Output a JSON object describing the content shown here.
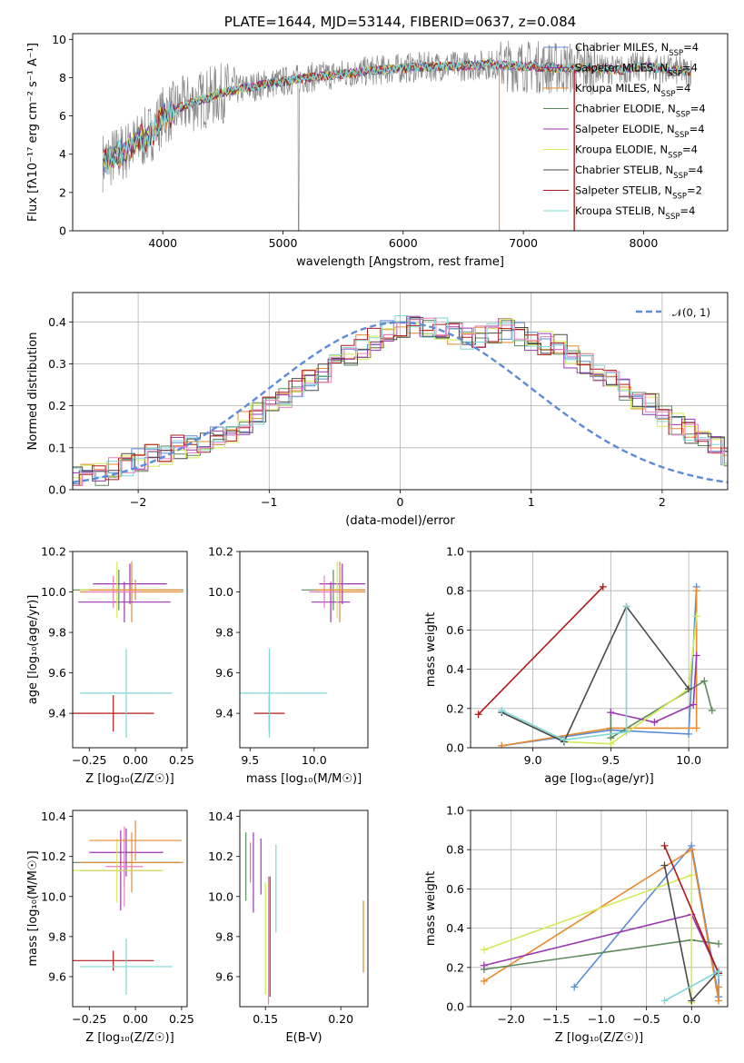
{
  "colors": [
    "#5b8bd9",
    "#e88a2e",
    "#5c8a5c",
    "#9b36b0",
    "#d4e855",
    "#4a4a4a",
    "#b01818",
    "#7fd6d6",
    "#e87fc0",
    "#888888"
  ],
  "chart_data": [
    {
      "type": "line",
      "title": "PLATE=1644, MJD=53144, FIBERID=0637, z=0.084",
      "xlabel": "wavelength [Angstrom, rest frame]",
      "ylabel": "Flux [fλ10⁻¹⁷ erg cm⁻² s⁻¹ A⁻¹]",
      "xlim": [
        3250,
        8700
      ],
      "ylim": [
        0,
        10.3
      ],
      "xticks": [
        "4000",
        "5000",
        "6000",
        "7000",
        "8000"
      ],
      "yticks": [
        "0",
        "2",
        "4",
        "6",
        "8",
        "10"
      ],
      "legend_position": "top-right",
      "series": [
        {
          "name": "Chabrier MILES, N",
          "sub": "SSP",
          "n": "=4",
          "color": "#5b8bd9"
        },
        {
          "name": "Salpeter MILES, N",
          "sub": "SSP",
          "n": "=4",
          "color": "#9b36b0"
        },
        {
          "name": "Kroupa MILES, N",
          "sub": "SSP",
          "n": "=4",
          "color": "#e88a2e"
        },
        {
          "name": "Chabrier ELODIE, N",
          "sub": "SSP",
          "n": "=4",
          "color": "#5c8a5c"
        },
        {
          "name": "Salpeter ELODIE, N",
          "sub": "SSP",
          "n": "=4",
          "color": "#9b36b0"
        },
        {
          "name": "Kroupa ELODIE, N",
          "sub": "SSP",
          "n": "=4",
          "color": "#d4e855"
        },
        {
          "name": "Chabrier STELIB, N",
          "sub": "SSP",
          "n": "=4",
          "color": "#4a4a4a"
        },
        {
          "name": "Salpeter STELIB, N",
          "sub": "SSP",
          "n": "=2",
          "color": "#b01818"
        },
        {
          "name": "Kroupa STELIB, N",
          "sub": "SSP",
          "n": "=4",
          "color": "#7fd6d6"
        }
      ],
      "continuum": {
        "x": [
          3500,
          3700,
          3900,
          4000,
          4200,
          4500,
          4800,
          5000,
          5200,
          5500,
          5800,
          6000,
          6300,
          6500,
          6700,
          7000,
          7300,
          7500,
          7800,
          8000,
          8200,
          8400
        ],
        "y": [
          3.6,
          4.2,
          5.1,
          6.0,
          6.6,
          7.2,
          7.6,
          7.8,
          8.0,
          8.2,
          8.4,
          8.5,
          8.6,
          8.6,
          8.7,
          8.6,
          8.5,
          8.5,
          8.4,
          8.6,
          8.4,
          8.3
        ]
      }
    },
    {
      "type": "bar",
      "subtype": "step-histogram",
      "xlabel": "(data-model)/error",
      "ylabel": "Normed distribution",
      "xlim": [
        -2.5,
        2.5
      ],
      "ylim": [
        0,
        0.47
      ],
      "xticks": [
        "−2",
        "−1",
        "0",
        "1",
        "2"
      ],
      "yticks": [
        "0.0",
        "0.1",
        "0.2",
        "0.3",
        "0.4"
      ],
      "grid": true,
      "legend": "𝒩(0, 1)",
      "legend_position": "top-right",
      "bin_width": 0.1,
      "bin_start": -2.5,
      "mean_profile": [
        0.03,
        0.035,
        0.04,
        0.05,
        0.06,
        0.07,
        0.08,
        0.09,
        0.1,
        0.105,
        0.11,
        0.12,
        0.14,
        0.16,
        0.18,
        0.2,
        0.22,
        0.24,
        0.26,
        0.28,
        0.3,
        0.32,
        0.34,
        0.36,
        0.38,
        0.39,
        0.4,
        0.39,
        0.38,
        0.37,
        0.36,
        0.36,
        0.37,
        0.38,
        0.37,
        0.36,
        0.35,
        0.34,
        0.32,
        0.3,
        0.28,
        0.26,
        0.24,
        0.22,
        0.2,
        0.18,
        0.16,
        0.14,
        0.12,
        0.1,
        0.08,
        0.07,
        0.06,
        0.05,
        0.04,
        0.035,
        0.03
      ]
    },
    {
      "type": "scatter",
      "subtype": "errorbar",
      "xlabel": "Z [log₁₀(Z/Z☉)]",
      "ylabel": "age  [log₁₀(age/yr)]",
      "xlim": [
        -0.34,
        0.28
      ],
      "ylim": [
        9.23,
        10.2
      ],
      "xticks": [
        "−0.25",
        "0.00",
        "0.25"
      ],
      "yticks": [
        "9.4",
        "9.6",
        "9.8",
        "10.0",
        "10.2"
      ],
      "points": [
        {
          "x": -0.09,
          "y": 10.01,
          "xe": 0.35,
          "ye": 0.1
        },
        {
          "x": -0.02,
          "y": 10.0,
          "xe": 0.28,
          "ye": 0.15
        },
        {
          "x": -0.03,
          "y": 10.04,
          "xe": 0.2,
          "ye": 0.1
        },
        {
          "x": -0.06,
          "y": 9.95,
          "xe": 0.25,
          "ye": 0.1
        },
        {
          "x": -0.1,
          "y": 10.01,
          "xe": 0.2,
          "ye": 0.14
        },
        {
          "x": -0.12,
          "y": 10.0,
          "xe": 0.15,
          "ye": 0.08
        },
        {
          "x": -0.12,
          "y": 9.4,
          "xe": 0.22,
          "ye": 0.09
        },
        {
          "x": -0.05,
          "y": 9.5,
          "xe": 0.25,
          "ye": 0.22
        },
        {
          "x": 0.0,
          "y": 10.01,
          "xe": 0.25,
          "ye": 0.05
        }
      ]
    },
    {
      "type": "scatter",
      "subtype": "errorbar",
      "xlabel": "mass [log₁₀(M/M☉)]",
      "xlim": [
        9.42,
        10.42
      ],
      "ylim": [
        9.23,
        10.2
      ],
      "xticks": [
        "9.5",
        "10.0"
      ],
      "yticks": [
        "9.4",
        "9.6",
        "9.8",
        "10.0",
        "10.2"
      ],
      "points": [
        {
          "x": 10.15,
          "y": 10.01,
          "xe": 0.25,
          "ye": 0.1
        },
        {
          "x": 10.2,
          "y": 10.0,
          "xe": 0.2,
          "ye": 0.15
        },
        {
          "x": 10.22,
          "y": 10.04,
          "xe": 0.18,
          "ye": 0.1
        },
        {
          "x": 10.13,
          "y": 9.95,
          "xe": 0.15,
          "ye": 0.1
        },
        {
          "x": 10.18,
          "y": 10.01,
          "xe": 0.15,
          "ye": 0.14
        },
        {
          "x": 10.08,
          "y": 10.0,
          "xe": 0.12,
          "ye": 0.08
        },
        {
          "x": 9.65,
          "y": 9.4,
          "xe": 0.12,
          "ye": 0.09
        },
        {
          "x": 9.65,
          "y": 9.5,
          "xe": 0.45,
          "ye": 0.22
        },
        {
          "x": 10.2,
          "y": 10.01,
          "xe": 0.2,
          "ye": 0.05
        }
      ]
    },
    {
      "type": "line",
      "xlabel": "age  [log₁₀(age/yr)]",
      "ylabel": "mass weight",
      "xlim": [
        8.6,
        10.25
      ],
      "ylim": [
        0,
        1.0
      ],
      "xticks": [
        "9.0",
        "9.5",
        "10.0"
      ],
      "yticks": [
        "0.0",
        "0.2",
        "0.4",
        "0.6",
        "0.8",
        "1.0"
      ],
      "grid": true,
      "series": [
        {
          "x": [
            8.8,
            9.5,
            10.0,
            10.05
          ],
          "y": [
            0.01,
            0.09,
            0.07,
            0.82
          ]
        },
        {
          "x": [
            8.8,
            9.5,
            10.05,
            10.05
          ],
          "y": [
            0.01,
            0.1,
            0.1,
            0.8
          ]
        },
        {
          "x": [
            9.5,
            9.5,
            10.1,
            10.15
          ],
          "y": [
            0.18,
            0.05,
            0.34,
            0.19
          ]
        },
        {
          "x": [
            9.5,
            9.78,
            10.03,
            10.05
          ],
          "y": [
            0.18,
            0.13,
            0.22,
            0.47
          ]
        },
        {
          "x": [
            9.2,
            9.5,
            10.0,
            10.05
          ],
          "y": [
            0.03,
            0.02,
            0.3,
            0.67
          ]
        },
        {
          "x": [
            8.8,
            9.2,
            9.6,
            10.0
          ],
          "y": [
            0.18,
            0.03,
            0.72,
            0.3
          ]
        },
        {
          "x": [
            8.65,
            9.45
          ],
          "y": [
            0.17,
            0.82
          ]
        },
        {
          "x": [
            8.8,
            9.2,
            9.6,
            9.6
          ],
          "y": [
            0.19,
            0.04,
            0.08,
            0.72
          ]
        }
      ]
    },
    {
      "type": "scatter",
      "subtype": "errorbar",
      "xlabel": "Z [log₁₀(Z/Z☉)]",
      "ylabel": "mass [log₁₀(M/M☉)]",
      "xlim": [
        -0.34,
        0.28
      ],
      "ylim": [
        9.45,
        10.43
      ],
      "xticks": [
        "−0.25",
        "0.00",
        "0.25"
      ],
      "yticks": [
        "9.6",
        "9.8",
        "10.0",
        "10.2",
        "10.4"
      ],
      "points": [
        {
          "x": -0.06,
          "y": 10.17,
          "xe": 0.3,
          "ye": 0.12
        },
        {
          "x": -0.02,
          "y": 10.17,
          "xe": 0.28,
          "ye": 0.15
        },
        {
          "x": -0.05,
          "y": 10.22,
          "xe": 0.2,
          "ye": 0.12
        },
        {
          "x": -0.08,
          "y": 10.13,
          "xe": 0.22,
          "ye": 0.2
        },
        {
          "x": -0.1,
          "y": 10.13,
          "xe": 0.25,
          "ye": 0.16
        },
        {
          "x": -0.06,
          "y": 10.15,
          "xe": 0.1,
          "ye": 0.2
        },
        {
          "x": -0.12,
          "y": 9.68,
          "xe": 0.22,
          "ye": 0.05
        },
        {
          "x": -0.05,
          "y": 9.65,
          "xe": 0.25,
          "ye": 0.14
        },
        {
          "x": 0.0,
          "y": 10.28,
          "xe": 0.25,
          "ye": 0.1
        }
      ]
    },
    {
      "type": "scatter",
      "subtype": "errorbar",
      "xlabel": "E(B-V)",
      "xlim": [
        0.133,
        0.218
      ],
      "ylim": [
        9.45,
        10.43
      ],
      "xticks": [
        "0.15",
        "0.20"
      ],
      "yticks": [
        "9.6",
        "9.8",
        "10.0",
        "10.2",
        "10.4"
      ],
      "points": [
        {
          "x": 0.137,
          "y": 10.15,
          "ye": 0.17
        },
        {
          "x": 0.14,
          "y": 10.17,
          "ye": 0.1
        },
        {
          "x": 0.142,
          "y": 10.12,
          "ye": 0.2
        },
        {
          "x": 0.147,
          "y": 10.15,
          "ye": 0.14
        },
        {
          "x": 0.15,
          "y": 9.79,
          "ye": 0.28
        },
        {
          "x": 0.152,
          "y": 9.78,
          "ye": 0.32
        },
        {
          "x": 0.153,
          "y": 9.8,
          "ye": 0.3
        },
        {
          "x": 0.157,
          "y": 10.04,
          "ye": 0.22
        },
        {
          "x": 0.215,
          "y": 9.8,
          "ye": 0.18
        }
      ]
    },
    {
      "type": "line",
      "xlabel": "Z [log₁₀(Z/Z☉)]",
      "ylabel": "mass weight",
      "xlim": [
        -2.45,
        0.4
      ],
      "ylim": [
        0,
        1.0
      ],
      "xticks": [
        "−2.0",
        "−1.5",
        "−1.0",
        "−0.5",
        "0.0"
      ],
      "yticks": [
        "0.0",
        "0.2",
        "0.4",
        "0.6",
        "0.8",
        "1.0"
      ],
      "grid": true,
      "series": [
        {
          "x": [
            -1.3,
            0.0,
            0.3,
            0.3
          ],
          "y": [
            0.1,
            0.82,
            0.05,
            0.17
          ]
        },
        {
          "x": [
            -2.3,
            0.0,
            0.3,
            0.3
          ],
          "y": [
            0.13,
            0.8,
            0.03,
            0.1
          ]
        },
        {
          "x": [
            -2.3,
            0.0,
            0.3
          ],
          "y": [
            0.19,
            0.34,
            0.32
          ]
        },
        {
          "x": [
            -2.3,
            0.0,
            0.3
          ],
          "y": [
            0.21,
            0.47,
            0.17
          ]
        },
        {
          "x": [
            -2.3,
            0.0,
            0.0
          ],
          "y": [
            0.29,
            0.67,
            0.02
          ]
        },
        {
          "x": [
            -0.3,
            0.0,
            0.3
          ],
          "y": [
            0.72,
            0.03,
            0.18
          ]
        },
        {
          "x": [
            -0.3,
            0.3
          ],
          "y": [
            0.82,
            0.17
          ]
        },
        {
          "x": [
            -0.3,
            0.3,
            0.3
          ],
          "y": [
            0.03,
            0.18,
            0.16
          ]
        }
      ]
    }
  ]
}
